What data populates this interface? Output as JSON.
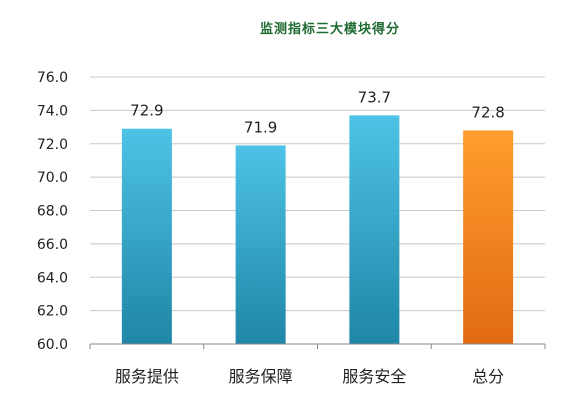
{
  "chart_data": {
    "type": "bar",
    "title": "监测指标三大模块得分",
    "xlabel": "",
    "ylabel": "",
    "categories": [
      "服务提供",
      "服务保障",
      "服务安全",
      "总分"
    ],
    "values": [
      72.9,
      71.9,
      73.7,
      72.8
    ],
    "data_labels": [
      "72.9",
      "71.9",
      "73.7",
      "72.8"
    ],
    "ylim": [
      60.0,
      76.0
    ],
    "yticks": [
      60.0,
      62.0,
      64.0,
      66.0,
      68.0,
      70.0,
      72.0,
      74.0,
      76.0
    ],
    "ytick_labels": [
      "60.0",
      "62.0",
      "64.0",
      "66.0",
      "68.0",
      "70.0",
      "72.0",
      "74.0",
      "76.0"
    ],
    "grid": true,
    "legend": "none",
    "colors": {
      "title": "#1f6b32",
      "bar_blue_light": "#4ec3e6",
      "bar_blue_dark": "#1f86a6",
      "bar_orange_light": "#ff9d2e",
      "bar_orange_dark": "#e26a12",
      "grid": "#c8c8c8",
      "axis": "#888888"
    },
    "bar_color_keys": [
      "blue",
      "blue",
      "blue",
      "orange"
    ]
  }
}
